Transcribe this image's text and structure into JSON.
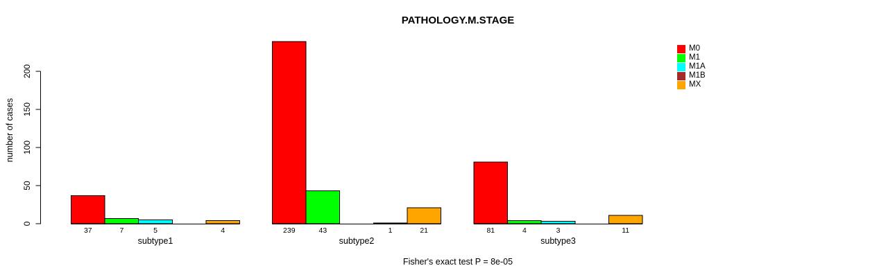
{
  "chart_data": {
    "type": "bar",
    "title": "PATHOLOGY.M.STAGE",
    "ylabel": "number of cases",
    "xlabel": "",
    "note": "Fisher's exact test P = 8e-05",
    "categories": [
      "subtype1",
      "subtype2",
      "subtype3"
    ],
    "series": [
      {
        "name": "M0",
        "color": "#FF0000",
        "values": [
          37,
          239,
          81
        ]
      },
      {
        "name": "M1",
        "color": "#00FF00",
        "values": [
          7,
          43,
          4
        ]
      },
      {
        "name": "M1A",
        "color": "#00FFFF",
        "values": [
          5,
          0,
          3
        ]
      },
      {
        "name": "M1B",
        "color": "#A52A2A",
        "values": [
          0,
          1,
          0
        ]
      },
      {
        "name": "MX",
        "color": "#FFA500",
        "values": [
          4,
          21,
          11
        ]
      }
    ],
    "y_ticks": [
      0,
      50,
      100,
      150,
      200
    ],
    "ylim": [
      0,
      240
    ],
    "grid": false,
    "legend_position": "top-right",
    "bar_value_labels": {
      "subtype1": [
        "37",
        "7",
        "5",
        "",
        "4"
      ],
      "subtype2": [
        "239",
        "43",
        "",
        "1",
        "21"
      ],
      "subtype3": [
        "81",
        "4",
        "3",
        "",
        "11"
      ]
    }
  }
}
